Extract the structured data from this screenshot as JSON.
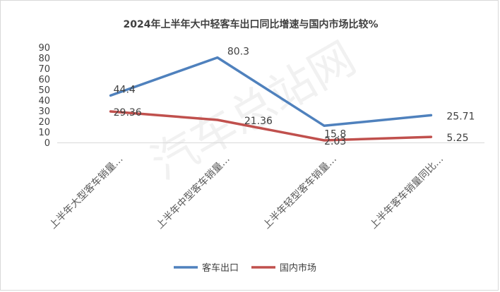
{
  "chart_data": {
    "type": "line",
    "title": "2024年上半年大中轻客车出口同比增速与国内市场比较%",
    "categories": [
      "上半年大型客车销量…",
      "上半年中型客车销量…",
      "上半年轻型客车销量…",
      "上半年客车销量同比…"
    ],
    "series": [
      {
        "name": "客车出口",
        "values": [
          44.4,
          80.3,
          15.8,
          25.71
        ],
        "labels": [
          "44.4",
          "80.3",
          "15.8",
          "25.71"
        ],
        "color": "#4f81bd"
      },
      {
        "name": "国内市场",
        "values": [
          29.36,
          21.36,
          2.03,
          5.25
        ],
        "labels": [
          "29.36",
          "21.36",
          "2.03",
          "5.25"
        ],
        "color": "#c0504d"
      }
    ],
    "yticks": [
      "0",
      "10",
      "20",
      "30",
      "40",
      "50",
      "60",
      "70",
      "80",
      "90"
    ],
    "ylim": [
      0,
      90
    ],
    "grid": false,
    "legend": "bottom",
    "watermark": "汽车总站网"
  }
}
